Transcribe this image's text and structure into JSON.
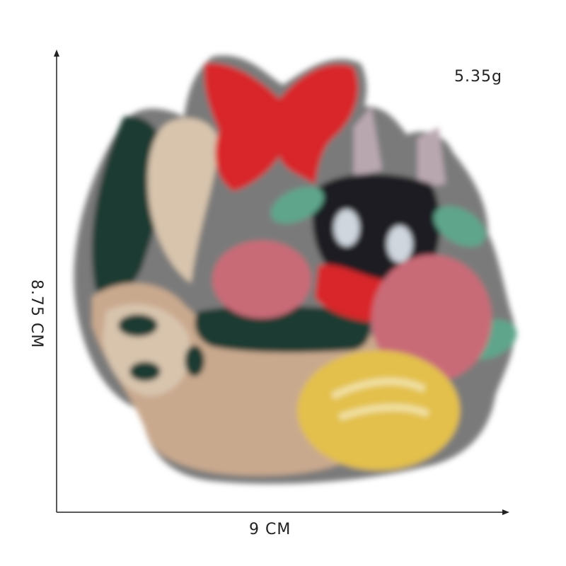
{
  "labels": {
    "weight": "5.35g",
    "height": "8.75 CM",
    "width": "9 CM"
  },
  "image": {
    "subject": "embroidered-patch-basket",
    "colors": {
      "outline": "#6e6e6e",
      "bow": "#d8262b",
      "basket": "#c9a98e",
      "handle": "#d8c4ad",
      "dark_green": "#1f3b32",
      "cat": "#1c1f22",
      "pink_flower": "#c96b77",
      "ears": "#b9a7b0",
      "leaf": "#5fa58c",
      "bread": "#e3c04c"
    }
  }
}
